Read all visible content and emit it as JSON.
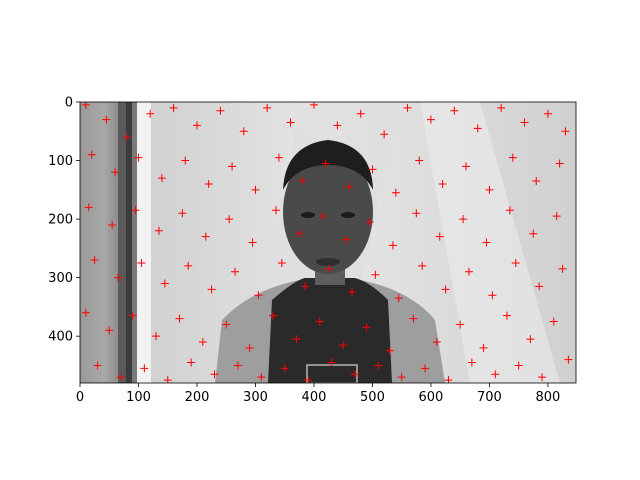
{
  "chart_data": {
    "type": "scatter",
    "title": "",
    "xlabel": "",
    "ylabel": "",
    "xlim": [
      0,
      848
    ],
    "ylim": [
      480,
      0
    ],
    "y_inverted": true,
    "grid": false,
    "background": "grayscale photograph of a person standing in front of a white wall with a dark door frame at left",
    "marker": "+",
    "marker_color": "#ff0000",
    "x_ticks": [
      0,
      100,
      200,
      300,
      400,
      500,
      600,
      700,
      800
    ],
    "y_ticks": [
      0,
      100,
      200,
      300,
      400
    ],
    "x_tick_labels": [
      "0",
      "100",
      "200",
      "300",
      "400",
      "500",
      "600",
      "700",
      "800"
    ],
    "y_tick_labels": [
      "0",
      "100",
      "200",
      "300",
      "400"
    ],
    "points_note": "roughly 1000 red + markers scattered uniformly over the image; a representative sample is listed",
    "points": [
      [
        10,
        5
      ],
      [
        45,
        30
      ],
      [
        80,
        60
      ],
      [
        120,
        20
      ],
      [
        160,
        10
      ],
      [
        200,
        40
      ],
      [
        240,
        15
      ],
      [
        280,
        50
      ],
      [
        320,
        10
      ],
      [
        360,
        35
      ],
      [
        400,
        5
      ],
      [
        440,
        40
      ],
      [
        480,
        20
      ],
      [
        520,
        55
      ],
      [
        560,
        10
      ],
      [
        600,
        30
      ],
      [
        640,
        15
      ],
      [
        680,
        45
      ],
      [
        720,
        10
      ],
      [
        760,
        35
      ],
      [
        800,
        20
      ],
      [
        830,
        50
      ],
      [
        20,
        90
      ],
      [
        60,
        120
      ],
      [
        100,
        95
      ],
      [
        140,
        130
      ],
      [
        180,
        100
      ],
      [
        220,
        140
      ],
      [
        260,
        110
      ],
      [
        300,
        150
      ],
      [
        340,
        95
      ],
      [
        380,
        135
      ],
      [
        420,
        105
      ],
      [
        460,
        145
      ],
      [
        500,
        115
      ],
      [
        540,
        155
      ],
      [
        580,
        100
      ],
      [
        620,
        140
      ],
      [
        660,
        110
      ],
      [
        700,
        150
      ],
      [
        740,
        95
      ],
      [
        780,
        135
      ],
      [
        820,
        105
      ],
      [
        15,
        180
      ],
      [
        55,
        210
      ],
      [
        95,
        185
      ],
      [
        135,
        220
      ],
      [
        175,
        190
      ],
      [
        215,
        230
      ],
      [
        255,
        200
      ],
      [
        295,
        240
      ],
      [
        335,
        185
      ],
      [
        375,
        225
      ],
      [
        415,
        195
      ],
      [
        455,
        235
      ],
      [
        495,
        205
      ],
      [
        535,
        245
      ],
      [
        575,
        190
      ],
      [
        615,
        230
      ],
      [
        655,
        200
      ],
      [
        695,
        240
      ],
      [
        735,
        185
      ],
      [
        775,
        225
      ],
      [
        815,
        195
      ],
      [
        25,
        270
      ],
      [
        65,
        300
      ],
      [
        105,
        275
      ],
      [
        145,
        310
      ],
      [
        185,
        280
      ],
      [
        225,
        320
      ],
      [
        265,
        290
      ],
      [
        305,
        330
      ],
      [
        345,
        275
      ],
      [
        385,
        315
      ],
      [
        425,
        285
      ],
      [
        465,
        325
      ],
      [
        505,
        295
      ],
      [
        545,
        335
      ],
      [
        585,
        280
      ],
      [
        625,
        320
      ],
      [
        665,
        290
      ],
      [
        705,
        330
      ],
      [
        745,
        275
      ],
      [
        785,
        315
      ],
      [
        825,
        285
      ],
      [
        10,
        360
      ],
      [
        50,
        390
      ],
      [
        90,
        365
      ],
      [
        130,
        400
      ],
      [
        170,
        370
      ],
      [
        210,
        410
      ],
      [
        250,
        380
      ],
      [
        290,
        420
      ],
      [
        330,
        365
      ],
      [
        370,
        405
      ],
      [
        410,
        375
      ],
      [
        450,
        415
      ],
      [
        490,
        385
      ],
      [
        530,
        425
      ],
      [
        570,
        370
      ],
      [
        610,
        410
      ],
      [
        650,
        380
      ],
      [
        690,
        420
      ],
      [
        730,
        365
      ],
      [
        770,
        405
      ],
      [
        810,
        375
      ],
      [
        30,
        450
      ],
      [
        70,
        470
      ],
      [
        110,
        455
      ],
      [
        150,
        475
      ],
      [
        190,
        445
      ],
      [
        230,
        465
      ],
      [
        270,
        450
      ],
      [
        310,
        470
      ],
      [
        350,
        455
      ],
      [
        390,
        475
      ],
      [
        430,
        445
      ],
      [
        470,
        465
      ],
      [
        510,
        450
      ],
      [
        550,
        470
      ],
      [
        590,
        455
      ],
      [
        630,
        475
      ],
      [
        670,
        445
      ],
      [
        710,
        465
      ],
      [
        750,
        450
      ],
      [
        790,
        470
      ],
      [
        835,
        440
      ]
    ]
  }
}
